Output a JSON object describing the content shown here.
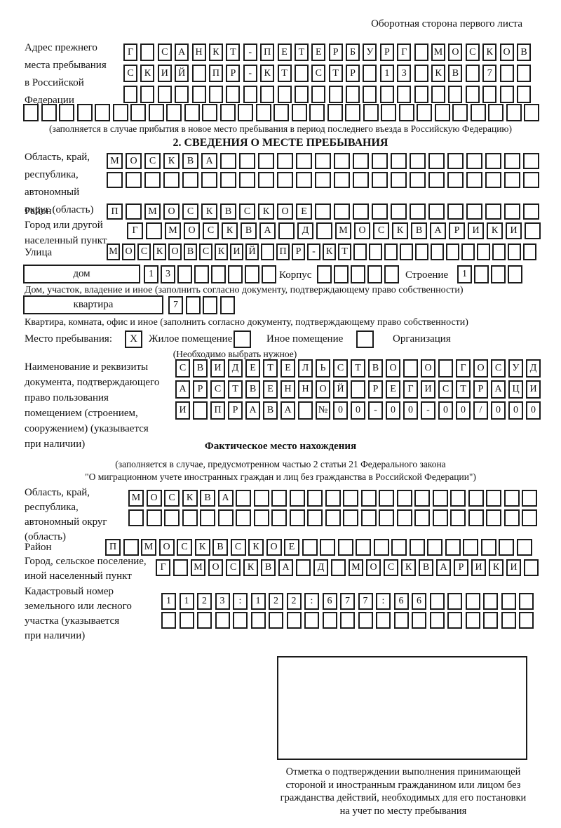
{
  "header": {
    "note": "Оборотная сторона первого листа"
  },
  "prev_address": {
    "label_lines": [
      "Адрес прежнего",
      "места пребывания",
      "в Российской",
      "Федерации"
    ],
    "row1": {
      "text": "Г САНКТ-ПЕТЕРБУРГ МОСКОВ",
      "len": 24
    },
    "row2": {
      "text": "СКИЙ ПР-КТ СТР 13 КВ 7",
      "len": 24
    },
    "row3": {
      "text": "",
      "len": 24
    },
    "row4": {
      "text": "",
      "len": 29
    },
    "note": "(заполняется в случае прибытия в новое место пребывания в период последнего въезда в Российскую Федерацию)"
  },
  "section2": {
    "title": "2. СВЕДЕНИЯ О МЕСТЕ ПРЕБЫВАНИЯ",
    "oblast": {
      "label_lines": [
        "Область, край,",
        "республика,",
        "автономный",
        "округ (область)"
      ],
      "row1": {
        "text": "МОСКВА",
        "len": 23
      },
      "row2": {
        "text": "",
        "len": 23
      }
    },
    "rayon": {
      "label": "Район",
      "row": {
        "text": "П МОСКВСКОЕ",
        "len": 23
      }
    },
    "gorod": {
      "label_lines": [
        "Город или другой",
        "населенный пункт"
      ],
      "row": {
        "text": "Г МОСКВА Д МОСКВАРИКИ",
        "len": 22
      }
    },
    "ulitsa": {
      "label": "Улица",
      "row": {
        "text": "МОСКОВСКИЙ ПР-КТ",
        "len": 28
      }
    },
    "dom": {
      "box_label": "дом",
      "cells": {
        "text": "13",
        "len": 8
      },
      "korpus_label": "Корпус",
      "korpus_cells": {
        "text": "",
        "len": 5
      },
      "stroenie_label": "Строение",
      "stroenie_cells": {
        "text": "1",
        "len": 4
      },
      "note": "Дом, участок, владение и иное (заполнить согласно документу, подтверждающему право собственности)"
    },
    "kvartira": {
      "box_label": "квартира",
      "cells": {
        "text": "7",
        "len": 4
      },
      "note": "Квартира, комната, офис и иное (заполнить согласно документу, подтверждающему право собственности)"
    },
    "mesto": {
      "label": "Место пребывания:",
      "zhiloe_mark": "X",
      "zhiloe_label": "Жилое помещение",
      "inoe_mark": "",
      "inoe_label": "Иное помещение",
      "org_mark": "",
      "org_label": "Организация",
      "note": "(Необходимо выбрать нужное)"
    },
    "document": {
      "label_lines": [
        "Наименование и реквизиты",
        "документа, подтверждающего",
        "право пользования",
        "помещением (строением,",
        "сооружением) (указывается",
        "при наличии)"
      ],
      "row1": {
        "text": "СВИДЕТЕЛЬСТВО О ГОСУД",
        "len": 21
      },
      "row2": {
        "text": "АРСТВЕННОЙ РЕГИСТРАЦИ",
        "len": 21
      },
      "row3": {
        "text": "И ПРАВА №00-00-00/000",
        "len": 21
      }
    }
  },
  "fact_location": {
    "title": "Фактическое место нахождения",
    "note_line1": "(заполняется в случае, предусмотренном частью 2 статьи 21 Федерального закона",
    "note_line2": "\"О миграционном учете иностранных граждан и лиц без гражданства в Российской Федерации\")",
    "oblast": {
      "label_lines": [
        "Область, край,",
        "республика,",
        "автономный округ",
        "(область)"
      ],
      "row1": {
        "text": "МОСКВА",
        "len": 23
      },
      "row2": {
        "text": "",
        "len": 23
      }
    },
    "rayon": {
      "label": "Район",
      "row": {
        "text": "П МОСКВСКОЕ",
        "len": 24
      }
    },
    "gorod": {
      "label_lines": [
        "Город, сельское поселение,",
        "иной населенный пункт"
      ],
      "row": {
        "text": "Г МОСКВА Д МОСКВАРИКИ",
        "len": 22
      }
    },
    "kadastr": {
      "label_lines": [
        "Кадастровый номер",
        "земельного или лесного",
        "участка (указывается",
        "при наличии)"
      ],
      "row1": {
        "text": "1123:122:677:66",
        "len": 21
      },
      "row2": {
        "text": "",
        "len": 21
      }
    },
    "stamp_caption_lines": [
      "Отметка о подтверждении выполнения принимающей",
      "стороной и иностранным гражданином или лицом без",
      "гражданства действий, необходимых для его постановки",
      "на учет по месту пребывания"
    ]
  }
}
